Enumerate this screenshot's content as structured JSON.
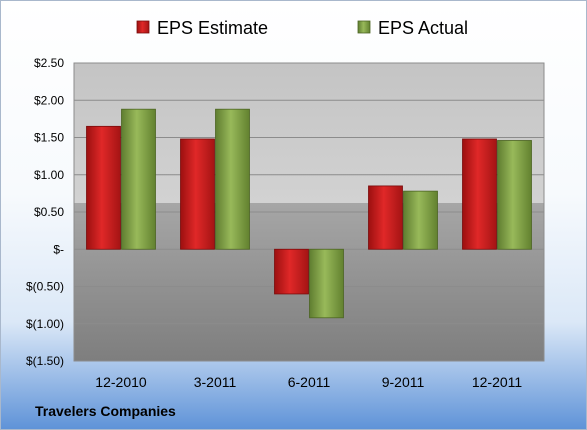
{
  "company": "Travelers Companies",
  "colors": {
    "estimate": "#d42020",
    "actual": "#86a84a"
  },
  "chart_data": {
    "type": "bar",
    "title": "",
    "xlabel": "",
    "ylabel": "",
    "categories": [
      "12-2010",
      "3-2011",
      "6-2011",
      "9-2011",
      "12-2011"
    ],
    "series": [
      {
        "name": "EPS Estimate",
        "values": [
          1.65,
          1.48,
          -0.6,
          0.85,
          1.48
        ]
      },
      {
        "name": "EPS Actual",
        "values": [
          1.88,
          1.88,
          -0.92,
          0.78,
          1.46
        ]
      }
    ],
    "ylim": [
      -1.5,
      2.5
    ],
    "yticks": [
      2.5,
      2.0,
      1.5,
      1.0,
      0.5,
      0,
      -0.5,
      -1.0,
      -1.5
    ],
    "ytick_labels": [
      "$2.50",
      "$2.00",
      "$1.50",
      "$1.00",
      "$0.50",
      "$-",
      "$(0.50)",
      "$(1.00)",
      "$(1.50)"
    ],
    "grid": true,
    "legend": "top"
  }
}
